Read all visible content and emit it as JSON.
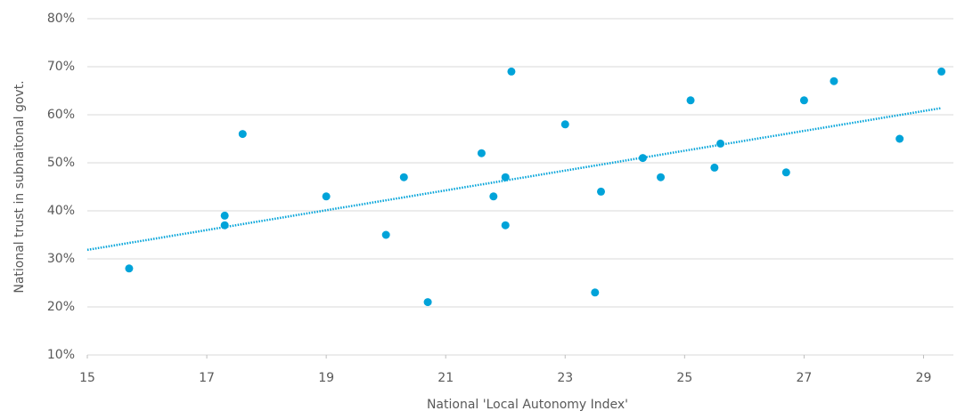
{
  "chart_data": {
    "type": "scatter",
    "x_label": "National 'Local Autonomy Index'",
    "y_label": "National trust in subnaitonal govt.",
    "color": "#00a3d9",
    "trendline": true,
    "grid": true,
    "x": [
      15.7,
      17.3,
      17.3,
      17.6,
      19,
      20,
      20.3,
      20.7,
      21.6,
      21.8,
      22,
      22,
      22.1,
      23,
      23.5,
      23.6,
      24.3,
      24.6,
      25.1,
      25.5,
      25.6,
      26.7,
      27,
      27.5,
      28.6,
      29.3
    ],
    "values": [
      28,
      39,
      37,
      56,
      43,
      35,
      47,
      21,
      52,
      43,
      37,
      47,
      69,
      58,
      23,
      44,
      51,
      47,
      63,
      49,
      54,
      48,
      63,
      67,
      55,
      69
    ],
    "xlim": [
      15,
      29.5
    ],
    "xticks": [
      15,
      17,
      19,
      21,
      23,
      25,
      27,
      29
    ],
    "ylim": [
      10,
      80
    ],
    "yticks": [
      {
        "value": 10,
        "label": "10%"
      },
      {
        "value": 20,
        "label": "20%"
      },
      {
        "value": 30,
        "label": "30%"
      },
      {
        "value": 40,
        "label": "40%"
      },
      {
        "value": 50,
        "label": "50%"
      },
      {
        "value": 60,
        "label": "60%"
      },
      {
        "value": 70,
        "label": "70%"
      },
      {
        "value": 80,
        "label": "80%"
      }
    ]
  }
}
